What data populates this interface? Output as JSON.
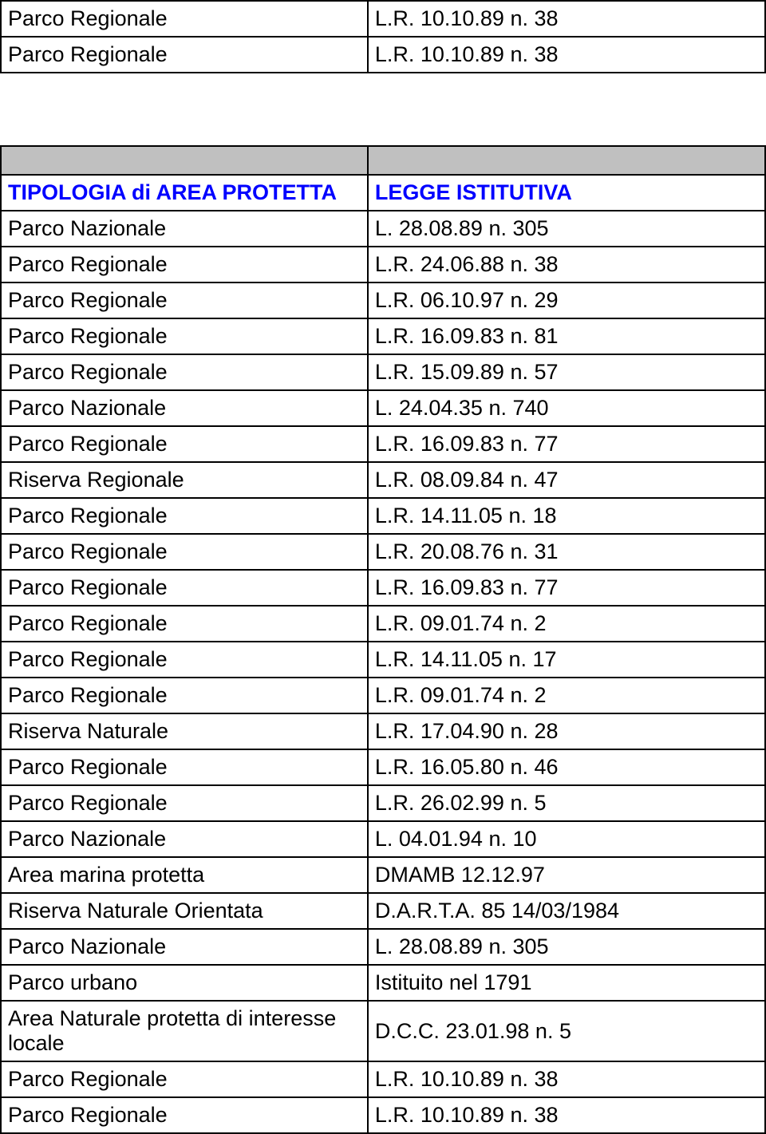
{
  "top_rows": [
    {
      "type": "Parco Regionale",
      "law": "L.R. 10.10.89 n. 38"
    },
    {
      "type": "Parco Regionale",
      "law": "L.R. 10.10.89 n. 38"
    }
  ],
  "header": {
    "col1": "TIPOLOGIA di AREA PROTETTA",
    "col2": "LEGGE ISTITUTIVA"
  },
  "rows": [
    {
      "type": "Parco Nazionale",
      "law": "L. 28.08.89 n. 305"
    },
    {
      "type": "Parco Regionale",
      "law": "L.R. 24.06.88 n. 38"
    },
    {
      "type": "Parco Regionale",
      "law": "L.R. 06.10.97 n. 29"
    },
    {
      "type": "Parco Regionale",
      "law": "L.R. 16.09.83 n. 81"
    },
    {
      "type": "Parco Regionale",
      "law": "L.R. 15.09.89 n. 57"
    },
    {
      "type": "Parco Nazionale",
      "law": "L. 24.04.35 n. 740"
    },
    {
      "type": "Parco Regionale",
      "law": "L.R. 16.09.83 n. 77"
    },
    {
      "type": "Riserva Regionale",
      "law": "L.R. 08.09.84 n. 47"
    },
    {
      "type": "Parco Regionale",
      "law": "L.R. 14.11.05 n. 18"
    },
    {
      "type": "Parco Regionale",
      "law": "L.R. 20.08.76 n. 31"
    },
    {
      "type": "Parco Regionale",
      "law": "L.R. 16.09.83 n. 77"
    },
    {
      "type": "Parco Regionale",
      "law": "L.R. 09.01.74 n. 2"
    },
    {
      "type": "Parco Regionale",
      "law": "L.R. 14.11.05 n. 17"
    },
    {
      "type": "Parco Regionale",
      "law": "L.R. 09.01.74 n. 2"
    },
    {
      "type": "Riserva Naturale",
      "law": "L.R. 17.04.90 n. 28"
    },
    {
      "type": "Parco Regionale",
      "law": "L.R. 16.05.80 n. 46"
    },
    {
      "type": "Parco Regionale",
      "law": "L.R. 26.02.99 n. 5"
    },
    {
      "type": "Parco Nazionale",
      "law": "L. 04.01.94 n. 10"
    },
    {
      "type": "Area marina protetta",
      "law": "DMAMB 12.12.97"
    },
    {
      "type": "Riserva Naturale Orientata",
      "law": "D.A.R.T.A. 85 14/03/1984"
    },
    {
      "type": "Parco Nazionale",
      "law": "L. 28.08.89 n. 305"
    },
    {
      "type": "Parco urbano",
      "law": "Istituito nel 1791"
    },
    {
      "type": "Area Naturale protetta di interesse locale",
      "law": "D.C.C. 23.01.98 n. 5"
    },
    {
      "type": "Parco Regionale",
      "law": "L.R. 10.10.89 n. 38"
    },
    {
      "type": "Parco Regionale",
      "law": "L.R. 10.10.89 n. 38"
    }
  ]
}
